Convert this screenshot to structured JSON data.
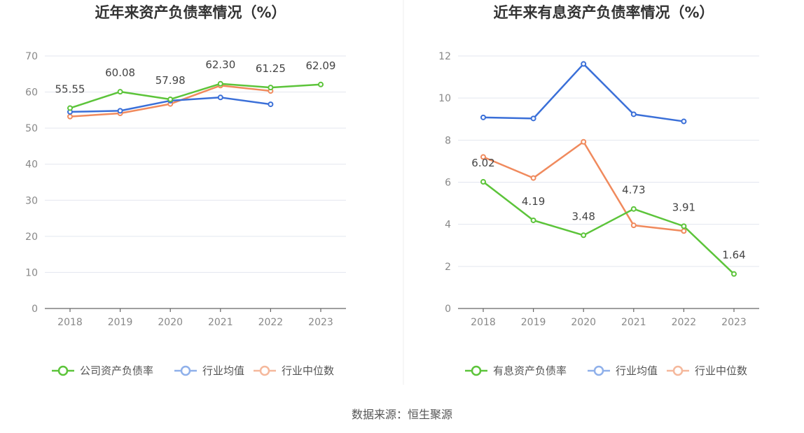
{
  "source_text": "数据来源：恒生聚源",
  "chart_data": [
    {
      "type": "line",
      "title": "近年来资产负债率情况（%）",
      "categories": [
        "2018",
        "2019",
        "2020",
        "2021",
        "2022",
        "2023"
      ],
      "ylim": [
        0,
        70
      ],
      "yticks": [
        0,
        10,
        20,
        30,
        40,
        50,
        60,
        70
      ],
      "grid": true,
      "legend_position": "bottom",
      "series": [
        {
          "name": "公司资产负债率",
          "color": "#5cc43a",
          "values": [
            55.55,
            60.08,
            57.98,
            62.3,
            61.25,
            62.09
          ],
          "labels": [
            "55.55",
            "60.08",
            "57.98",
            "62.30",
            "61.25",
            "62.09"
          ]
        },
        {
          "name": "行业均值",
          "color": "#3a6fd8",
          "legend_color": "#8fb0ea",
          "values": [
            54.5,
            54.8,
            57.6,
            58.5,
            56.6,
            null
          ]
        },
        {
          "name": "行业中位数",
          "color": "#f08a5d",
          "legend_color": "#f5b89c",
          "values": [
            53.2,
            54.1,
            56.7,
            61.8,
            60.3,
            null
          ]
        }
      ]
    },
    {
      "type": "line",
      "title": "近年来有息资产负债率情况（%）",
      "categories": [
        "2018",
        "2019",
        "2020",
        "2021",
        "2022",
        "2023"
      ],
      "ylim": [
        0,
        12
      ],
      "yticks": [
        0,
        2,
        4,
        6,
        8,
        10,
        12
      ],
      "grid": true,
      "legend_position": "bottom",
      "series": [
        {
          "name": "有息资产负债率",
          "color": "#5cc43a",
          "values": [
            6.02,
            4.19,
            3.48,
            4.73,
            3.91,
            1.64
          ],
          "labels": [
            "6.02",
            "4.19",
            "3.48",
            "4.73",
            "3.91",
            "1.64"
          ]
        },
        {
          "name": "行业均值",
          "color": "#3a6fd8",
          "legend_color": "#8fb0ea",
          "values": [
            9.08,
            9.03,
            11.62,
            9.23,
            8.89,
            null
          ]
        },
        {
          "name": "行业中位数",
          "color": "#f08a5d",
          "legend_color": "#f5b89c",
          "values": [
            7.2,
            6.2,
            7.92,
            3.95,
            3.68,
            null
          ]
        }
      ]
    }
  ]
}
